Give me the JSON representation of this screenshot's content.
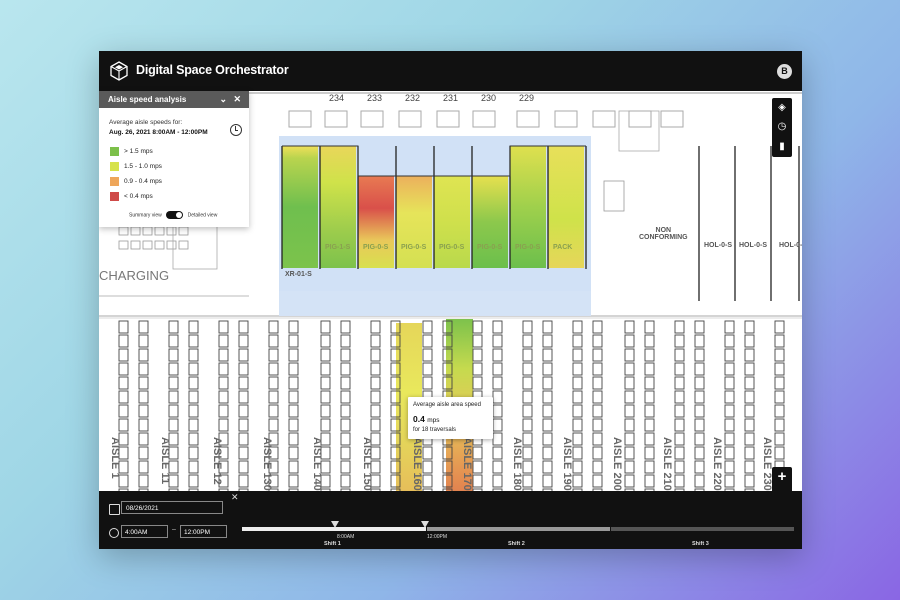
{
  "app": {
    "title": "Digital Space Orchestrator",
    "avatar_initial": "B"
  },
  "panel": {
    "title": "Aisle speed analysis",
    "subtitle": "Average aisle speeds for:",
    "date_range": "Aug. 26, 2021   8:00AM - 12:00PM",
    "legend": [
      {
        "label": "> 1.5 mps",
        "color": "#7cc04a"
      },
      {
        "label": "1.5 - 1.0 mps",
        "color": "#d6e24a"
      },
      {
        "label": "0.9 - 0.4 mps",
        "color": "#eea65a"
      },
      {
        "label": "< 0.4 mps",
        "color": "#cf4a48"
      }
    ],
    "toggle_left": "Summary view",
    "toggle_right": "Detailed view"
  },
  "map": {
    "column_numbers": [
      "234",
      "233",
      "232",
      "231",
      "230",
      "229"
    ],
    "charging_label": "CHARGING",
    "zone_labels": [
      "PIG-1-S",
      "PIG-0-S",
      "PIG-0-S",
      "PIG-0-S",
      "PIG-0-S",
      "PIG-0-S",
      "PACK"
    ],
    "xr_label": "XR-01-S",
    "right_labels": [
      "NON\nCONFORMING",
      "HOL-0-S",
      "HOL-0-S",
      "HOL-0-S"
    ],
    "aisles": [
      "AISLE 1",
      "AISLE 11",
      "AISLE 12",
      "AISLE 130",
      "AISLE 140",
      "AISLE 150",
      "AISLE 160",
      "AISLE 170",
      "AISLE 180",
      "AISLE 190",
      "AISLE 200",
      "AISLE 210",
      "AISLE 220",
      "AISLE 230"
    ]
  },
  "tooltip": {
    "title": "Average aisle area speed",
    "value": "0.4",
    "unit": "mps",
    "sub": "for 18 traversals"
  },
  "timeline": {
    "date": "08/26/2021",
    "start": "4:00AM",
    "separator": "–",
    "end": "12:00PM",
    "handle_start": "8:00AM",
    "handle_end": "12:00PM",
    "shifts": [
      "Shift 1",
      "Shift 2",
      "Shift 3"
    ]
  },
  "icons": [
    "logo-cube-icon",
    "layers-icon",
    "clock-icon",
    "bar-chart-icon",
    "zoom-in-icon",
    "zoom-out-icon",
    "calendar-icon",
    "close-icon",
    "chevron-down-icon"
  ]
}
